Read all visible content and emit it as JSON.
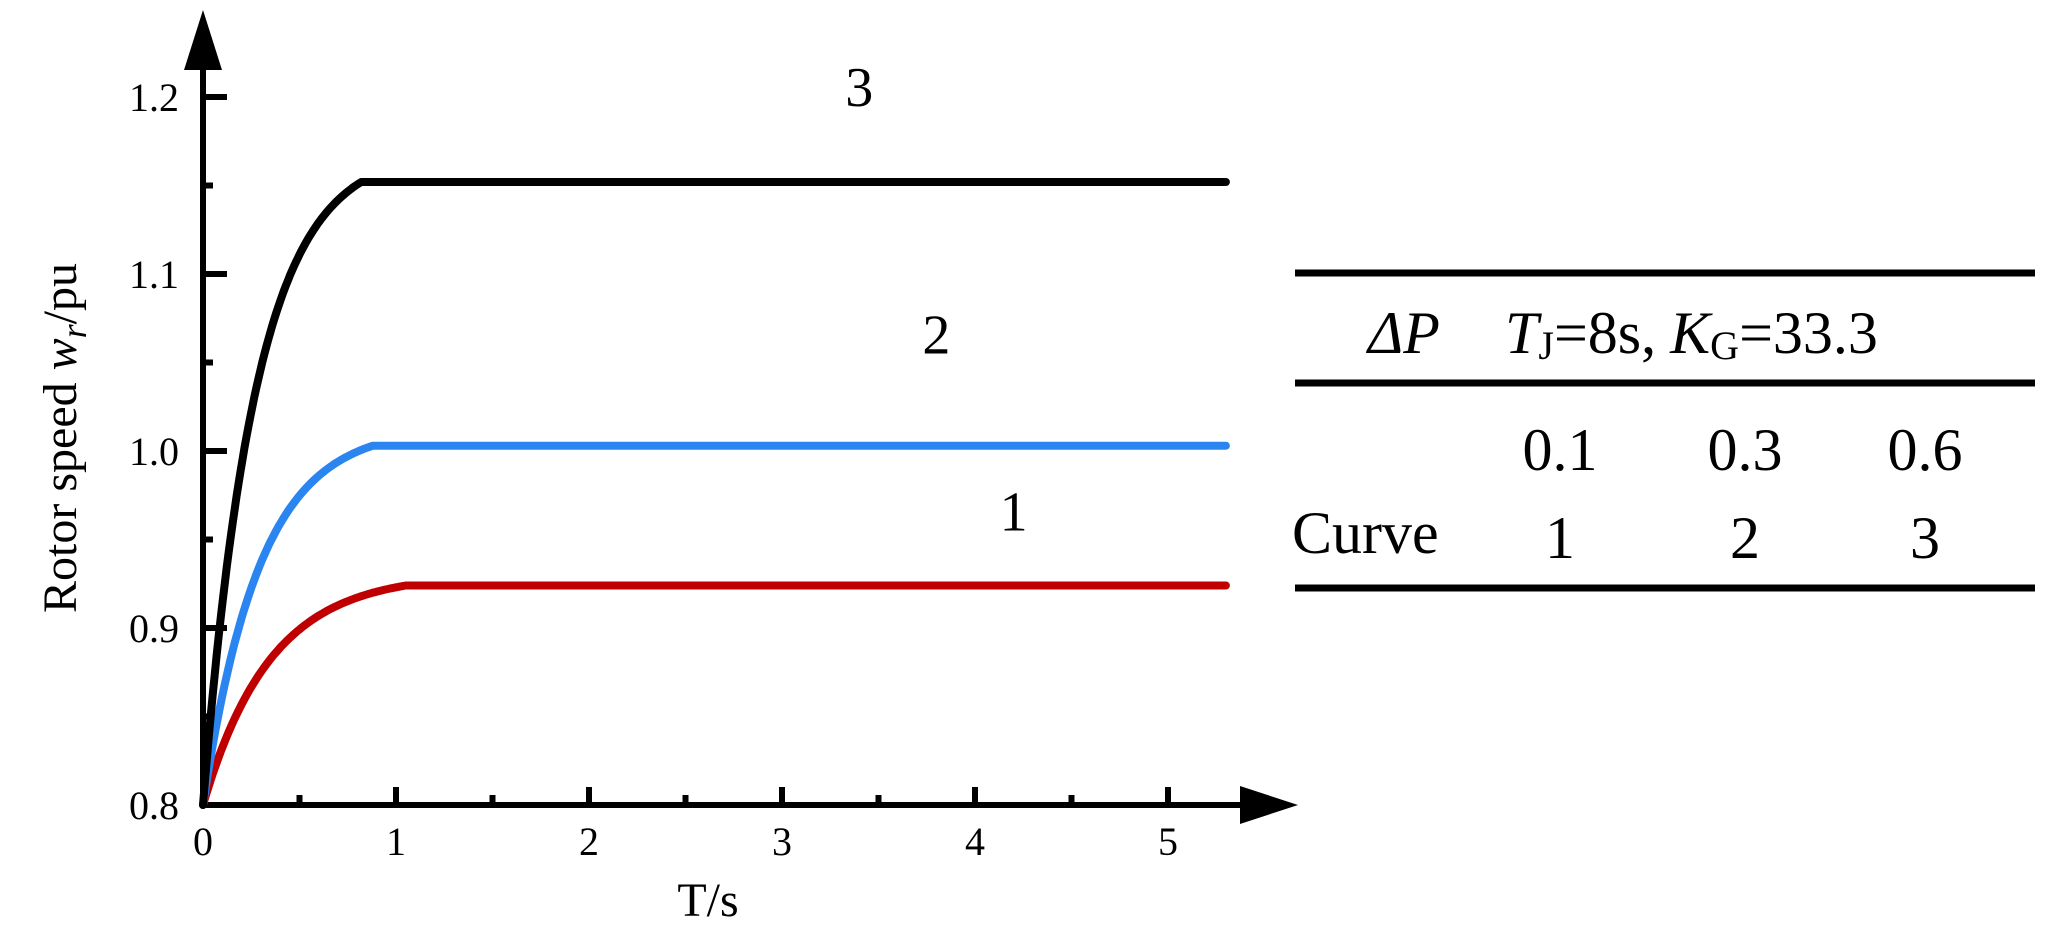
{
  "chart_data": {
    "type": "line",
    "xlabel": "T/s",
    "ylabel": {
      "prefix": "Rotor speed ",
      "symbol": "w",
      "subscript": "r",
      "suffix": "/pu"
    },
    "xlim": [
      0,
      5.4
    ],
    "ylim": [
      0.8,
      1.25
    ],
    "xticks": [
      0,
      1,
      2,
      3,
      4,
      5
    ],
    "xtick_labels": [
      "0",
      "1",
      "2",
      "3",
      "4",
      "5"
    ],
    "yticks": [
      0.8,
      0.9,
      1.0,
      1.1,
      1.2
    ],
    "ytick_labels": [
      "0.8",
      "0.9",
      "1.0",
      "1.1",
      "1.2"
    ],
    "grid": false,
    "series": [
      {
        "name": "1",
        "color": "#c00000",
        "start": 0.8,
        "final": 0.924,
        "settle_time": 1.05,
        "end_time": 5.3,
        "label_at": [
          4.2,
          0.955
        ]
      },
      {
        "name": "2",
        "color": "#2b85f0",
        "start": 0.8,
        "final": 1.003,
        "settle_time": 0.88,
        "end_time": 5.3,
        "label_at": [
          3.8,
          1.055
        ]
      },
      {
        "name": "3",
        "color": "#000000",
        "start": 0.8,
        "final": 1.152,
        "settle_time": 0.82,
        "end_time": 5.3,
        "label_at": [
          3.4,
          1.195
        ]
      }
    ],
    "legend_table": {
      "position": "right",
      "header": {
        "dp": "ΔP",
        "tj_symbol": "T",
        "tj_sub": "J",
        "tj_value": "=8s,",
        "kg_symbol": "K",
        "kg_sub": "G",
        "kg_value": "=33.3"
      },
      "dp_values": [
        "0.1",
        "0.3",
        "0.6"
      ],
      "row_label": "Curve",
      "curve_numbers": [
        "1",
        "2",
        "3"
      ]
    }
  }
}
